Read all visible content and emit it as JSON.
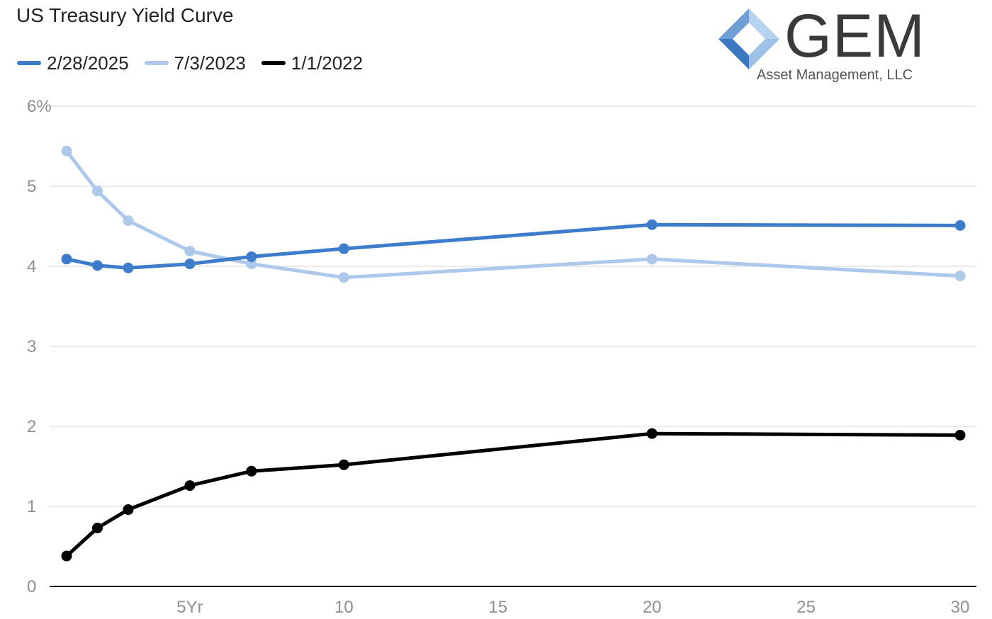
{
  "chart_data": {
    "type": "line",
    "title": "US Treasury Yield Curve",
    "xlabel": "",
    "ylabel": "",
    "xlim": [
      0.6,
      30.4
    ],
    "ylim": [
      0,
      6
    ],
    "x_ticks": [
      {
        "value": 5,
        "label": "5Yr"
      },
      {
        "value": 10,
        "label": "10"
      },
      {
        "value": 15,
        "label": "15"
      },
      {
        "value": 20,
        "label": "20"
      },
      {
        "value": 25,
        "label": "25"
      },
      {
        "value": 30,
        "label": "30"
      }
    ],
    "y_ticks": [
      {
        "value": 0,
        "label": "0"
      },
      {
        "value": 1,
        "label": "1"
      },
      {
        "value": 2,
        "label": "2"
      },
      {
        "value": 3,
        "label": "3"
      },
      {
        "value": 4,
        "label": "4"
      },
      {
        "value": 5,
        "label": "5"
      },
      {
        "value": 6,
        "label": "6%"
      }
    ],
    "grid": true,
    "legend_position": "top-left",
    "x": [
      1,
      2,
      3,
      5,
      7,
      10,
      20,
      30
    ],
    "series": [
      {
        "name": "2/28/2025",
        "color": "#3d7ccb",
        "values": [
          4.09,
          4.01,
          3.98,
          4.03,
          4.12,
          4.22,
          4.52,
          4.51
        ]
      },
      {
        "name": "7/3/2023",
        "color": "#adc8ea",
        "values": [
          5.44,
          4.94,
          4.57,
          4.19,
          4.03,
          3.86,
          4.09,
          3.88
        ]
      },
      {
        "name": "1/1/2022",
        "color": "#000000",
        "values": [
          0.38,
          0.73,
          0.96,
          1.26,
          1.44,
          1.52,
          1.91,
          1.89
        ]
      }
    ]
  },
  "logo": {
    "name": "GEM",
    "subtitle": "Asset Management, LLC",
    "colors": {
      "dark": "#3a78c0",
      "light": "#b7d2ee",
      "text": "#3a3a3a"
    }
  }
}
